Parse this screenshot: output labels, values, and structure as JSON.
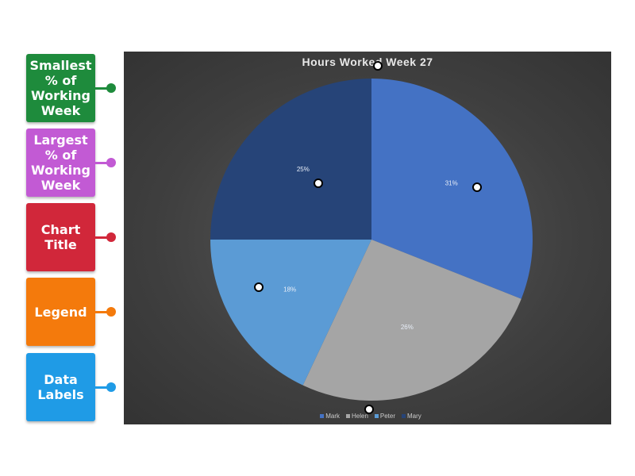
{
  "labels": [
    {
      "text": "Smallest % of Working Week",
      "color": "#1e8b3c"
    },
    {
      "text": "Largest % of Working Week",
      "color": "#c25ad4"
    },
    {
      "text": "Chart Title",
      "color": "#d1273a"
    },
    {
      "text": "Legend",
      "color": "#f47a0c"
    },
    {
      "text": "Data Labels",
      "color": "#1f9be6"
    }
  ],
  "chart_data": {
    "type": "pie",
    "title": "Hours Worked Week 27",
    "categories": [
      "Mark",
      "Helen",
      "Peter",
      "Mary"
    ],
    "values": [
      31,
      26,
      18,
      25
    ],
    "data_labels": [
      "31%",
      "26%",
      "18%",
      "25%"
    ],
    "colors": [
      "#4472c4",
      "#a5a5a5",
      "#5b9bd5",
      "#264478"
    ],
    "legend_position": "bottom"
  }
}
